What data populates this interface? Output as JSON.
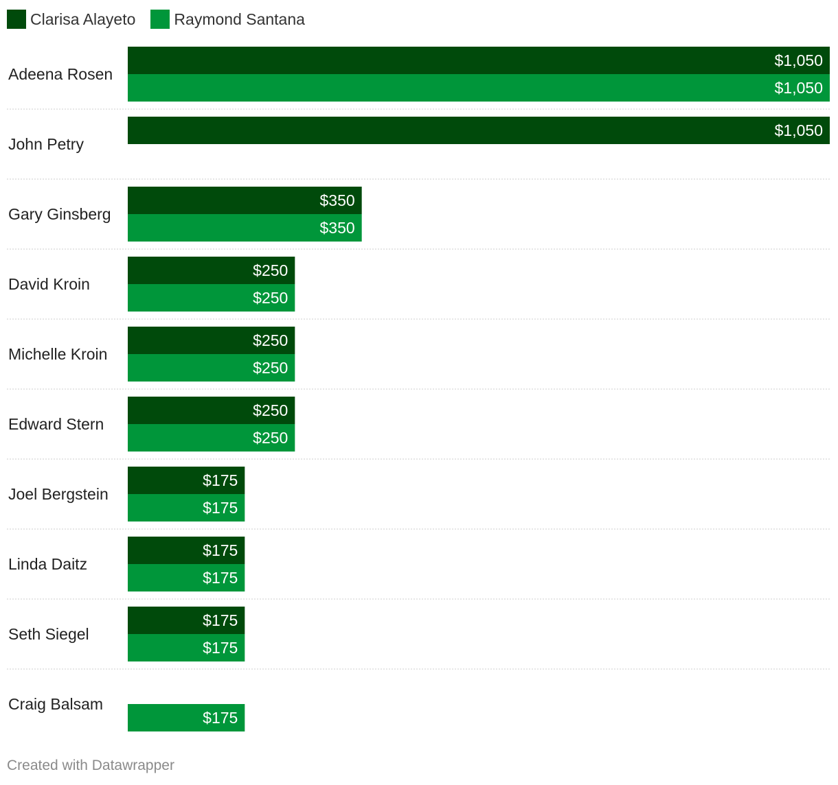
{
  "chart_data": {
    "type": "bar",
    "orientation": "horizontal",
    "categories": [
      "Adeena Rosen",
      "John Petry",
      "Gary Ginsberg",
      "David Kroin",
      "Michelle Kroin",
      "Edward Stern",
      "Joel Bergstein",
      "Linda Daitz",
      "Seth Siegel",
      "Craig Balsam"
    ],
    "series": [
      {
        "name": "Clarisa Alayeto",
        "color": "#004a0b",
        "values": [
          1050,
          1050,
          350,
          250,
          250,
          250,
          175,
          175,
          175,
          null
        ],
        "labels": [
          "$1,050",
          "$1,050",
          "$350",
          "$250",
          "$250",
          "$250",
          "$175",
          "$175",
          "$175",
          ""
        ]
      },
      {
        "name": "Raymond Santana",
        "color": "#00963a",
        "values": [
          1050,
          null,
          350,
          250,
          250,
          250,
          175,
          175,
          175,
          175
        ],
        "labels": [
          "$1,050",
          "",
          "$350",
          "$250",
          "$250",
          "$250",
          "$175",
          "$175",
          "$175",
          "$175"
        ]
      }
    ],
    "xlim": [
      0,
      1050
    ],
    "grid": false,
    "legend_position": "top-left"
  },
  "footer": {
    "credit": "Created with Datawrapper"
  }
}
